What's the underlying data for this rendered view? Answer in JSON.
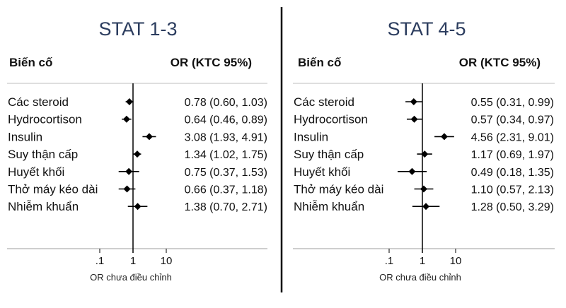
{
  "chart_data": [
    {
      "type": "forest",
      "title": "STAT 1-3",
      "col_event": "Biến cố",
      "col_or": "OR (KTC 95%)",
      "xlabel": "OR chưa điều chỉnh",
      "x_scale": "log",
      "xticks": [
        ".1",
        "1",
        "10"
      ],
      "reference_line": 1,
      "rows": [
        {
          "label": "Các steroid",
          "or": 0.78,
          "lo": 0.6,
          "hi": 1.03,
          "text": "0.78 (0.60, 1.03)"
        },
        {
          "label": "Hydrocortison",
          "or": 0.64,
          "lo": 0.46,
          "hi": 0.89,
          "text": "0.64 (0.46, 0.89)"
        },
        {
          "label": "Insulin",
          "or": 3.08,
          "lo": 1.93,
          "hi": 4.91,
          "text": "3.08 (1.93, 4.91)"
        },
        {
          "label": "Suy thận cấp",
          "or": 1.34,
          "lo": 1.02,
          "hi": 1.75,
          "text": "1.34 (1.02, 1.75)"
        },
        {
          "label": "Huyết khối",
          "or": 0.75,
          "lo": 0.37,
          "hi": 1.53,
          "text": "0.75 (0.37, 1.53)"
        },
        {
          "label": "Thở máy kéo dài",
          "or": 0.66,
          "lo": 0.37,
          "hi": 1.18,
          "text": "0.66 (0.37, 1.18)"
        },
        {
          "label": "Nhiễm khuẩn",
          "or": 1.38,
          "lo": 0.7,
          "hi": 2.71,
          "text": "1.38 (0.70, 2.71)"
        }
      ]
    },
    {
      "type": "forest",
      "title": "STAT 4-5",
      "col_event": "Biến cố",
      "col_or": "OR (KTC 95%)",
      "xlabel": "OR chưa điều chỉnh",
      "x_scale": "log",
      "xticks": [
        ".1",
        "1",
        "10"
      ],
      "reference_line": 1,
      "rows": [
        {
          "label": "Các steroid",
          "or": 0.55,
          "lo": 0.31,
          "hi": 0.99,
          "text": "0.55 (0.31, 0.99)"
        },
        {
          "label": "Hydrocortison",
          "or": 0.57,
          "lo": 0.34,
          "hi": 0.97,
          "text": "0.57 (0.34, 0.97)"
        },
        {
          "label": "Insulin",
          "or": 4.56,
          "lo": 2.31,
          "hi": 9.01,
          "text": "4.56 (2.31, 9.01)"
        },
        {
          "label": "Suy thận cấp",
          "or": 1.17,
          "lo": 0.69,
          "hi": 1.97,
          "text": "1.17 (0.69, 1.97)"
        },
        {
          "label": "Huyết khối",
          "or": 0.49,
          "lo": 0.18,
          "hi": 1.35,
          "text": "0.49 (0.18, 1.35)"
        },
        {
          "label": "Thở máy kéo dài",
          "or": 1.1,
          "lo": 0.57,
          "hi": 2.13,
          "text": "1.10 (0.57, 2.13)"
        },
        {
          "label": "Nhiễm khuẩn",
          "or": 1.28,
          "lo": 0.5,
          "hi": 3.29,
          "text": "1.28 (0.50, 3.29)"
        }
      ]
    }
  ]
}
